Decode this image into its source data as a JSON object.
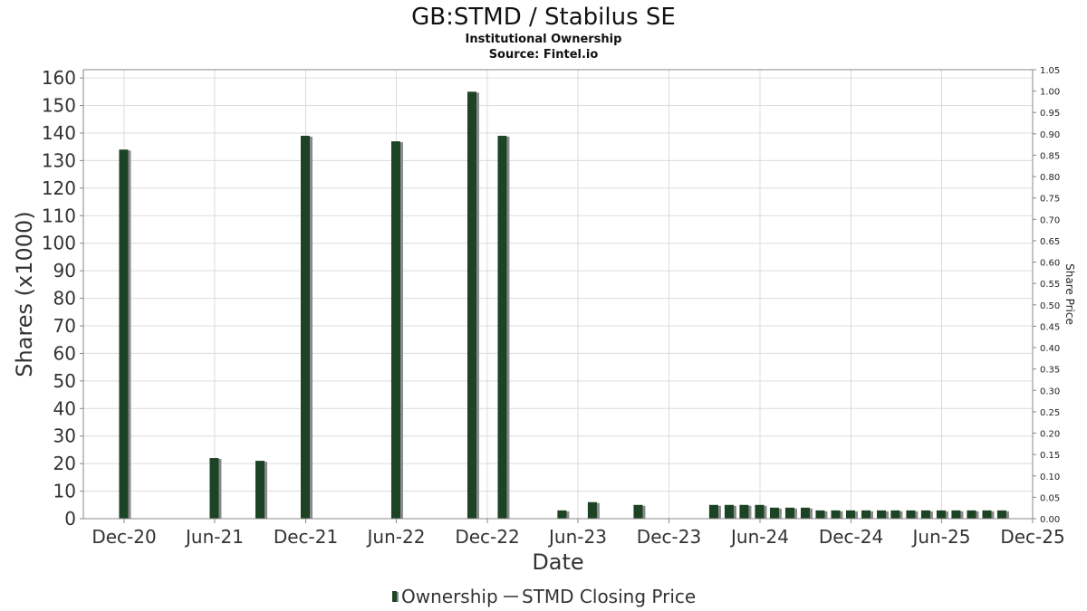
{
  "header": {
    "title": "GB:STMD / Stabilus SE",
    "subtitle_1": "Institutional Ownership",
    "subtitle_2": "Source: Fintel.io"
  },
  "legend": {
    "ownership_label": "Ownership",
    "price_label": "STMD Closing Price"
  },
  "colors": {
    "bar": "#1b4324",
    "bar_shadow": "#8a8a8a",
    "grid": "#dcdcdc",
    "axis": "#888888"
  },
  "chart_data": {
    "type": "bar",
    "xlabel": "Date",
    "ylabel": "Shares (x1000)",
    "y2label": "Share Price",
    "ylim": [
      0,
      163
    ],
    "y2lim": [
      0,
      1.05
    ],
    "grid": true,
    "legend_position": "bottom-center",
    "yticks": [
      "0",
      "10",
      "20",
      "30",
      "40",
      "50",
      "60",
      "70",
      "80",
      "90",
      "100",
      "110",
      "120",
      "130",
      "140",
      "150",
      "160"
    ],
    "y2ticks": [
      "0.00",
      "0.05",
      "0.10",
      "0.15",
      "0.20",
      "0.25",
      "0.30",
      "0.35",
      "0.40",
      "0.45",
      "0.50",
      "0.55",
      "0.60",
      "0.65",
      "0.70",
      "0.75",
      "0.80",
      "0.85",
      "0.90",
      "0.95",
      "1.00",
      "1.05"
    ],
    "xticks": [
      "Dec-20",
      "Jun-21",
      "Dec-21",
      "Jun-22",
      "Dec-22",
      "Jun-23",
      "Dec-23",
      "Jun-24",
      "Dec-24",
      "Jun-25",
      "Dec-25"
    ],
    "x_range": [
      "2020-09-10",
      "2025-12-01"
    ],
    "series": [
      {
        "name": "Ownership",
        "points": [
          {
            "date": "2020-11-30",
            "value": 134
          },
          {
            "date": "2021-05-31",
            "value": 22
          },
          {
            "date": "2021-08-31",
            "value": 21
          },
          {
            "date": "2021-11-30",
            "value": 139
          },
          {
            "date": "2022-05-31",
            "value": 137
          },
          {
            "date": "2022-10-31",
            "value": 155
          },
          {
            "date": "2022-12-31",
            "value": 139
          },
          {
            "date": "2023-04-30",
            "value": 3
          },
          {
            "date": "2023-06-30",
            "value": 6
          },
          {
            "date": "2023-09-30",
            "value": 5
          },
          {
            "date": "2024-02-29",
            "value": 5
          },
          {
            "date": "2024-03-31",
            "value": 5
          },
          {
            "date": "2024-04-30",
            "value": 5
          },
          {
            "date": "2024-05-31",
            "value": 5
          },
          {
            "date": "2024-06-30",
            "value": 4
          },
          {
            "date": "2024-07-31",
            "value": 4
          },
          {
            "date": "2024-08-31",
            "value": 4
          },
          {
            "date": "2024-09-30",
            "value": 3
          },
          {
            "date": "2024-10-31",
            "value": 3
          },
          {
            "date": "2024-11-30",
            "value": 3
          },
          {
            "date": "2024-12-31",
            "value": 3
          },
          {
            "date": "2025-01-31",
            "value": 3
          },
          {
            "date": "2025-02-28",
            "value": 3
          },
          {
            "date": "2025-03-31",
            "value": 3
          },
          {
            "date": "2025-04-30",
            "value": 3
          },
          {
            "date": "2025-05-31",
            "value": 3
          },
          {
            "date": "2025-06-30",
            "value": 3
          },
          {
            "date": "2025-07-31",
            "value": 3
          },
          {
            "date": "2025-08-31",
            "value": 3
          },
          {
            "date": "2025-09-30",
            "value": 3
          }
        ]
      }
    ]
  }
}
